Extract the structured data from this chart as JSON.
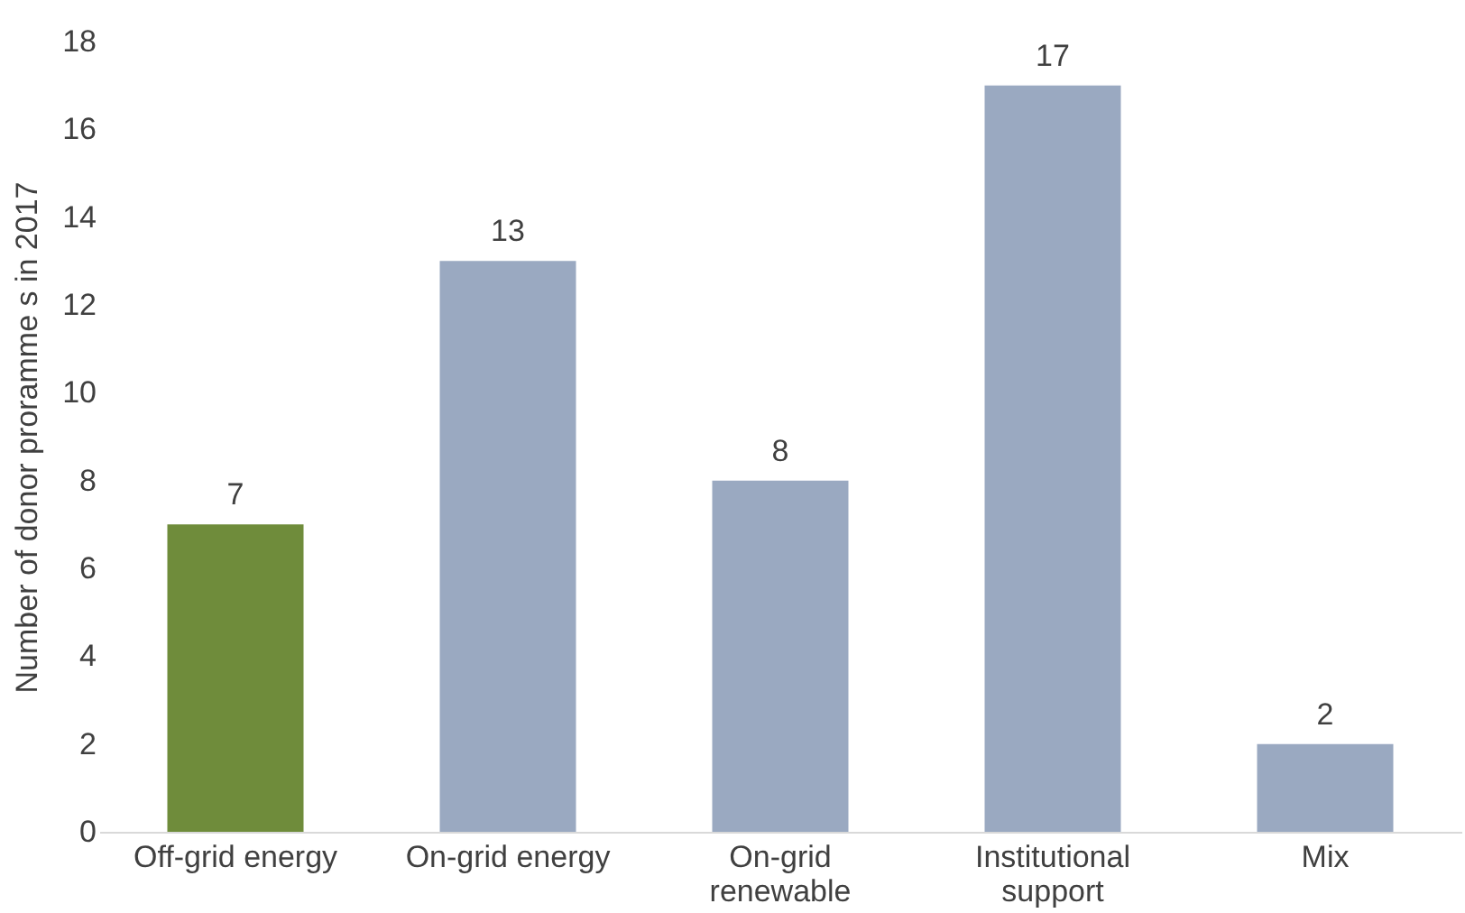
{
  "chart_data": {
    "type": "bar",
    "ylabel": "Number of donor proramme s in 2017",
    "categories": [
      "Off-grid energy",
      "On-grid energy",
      "On-grid renewable",
      "Institutional support",
      "Mix"
    ],
    "values": [
      7,
      13,
      8,
      17,
      2
    ],
    "colors": [
      "#6f8c3b",
      "#9aa9c1",
      "#9aa9c1",
      "#9aa9c1",
      "#9aa9c1"
    ],
    "ylim": [
      0,
      18
    ],
    "yticks": [
      0,
      2,
      4,
      6,
      8,
      10,
      12,
      14,
      16,
      18
    ],
    "grid": false,
    "data_labels": true
  }
}
